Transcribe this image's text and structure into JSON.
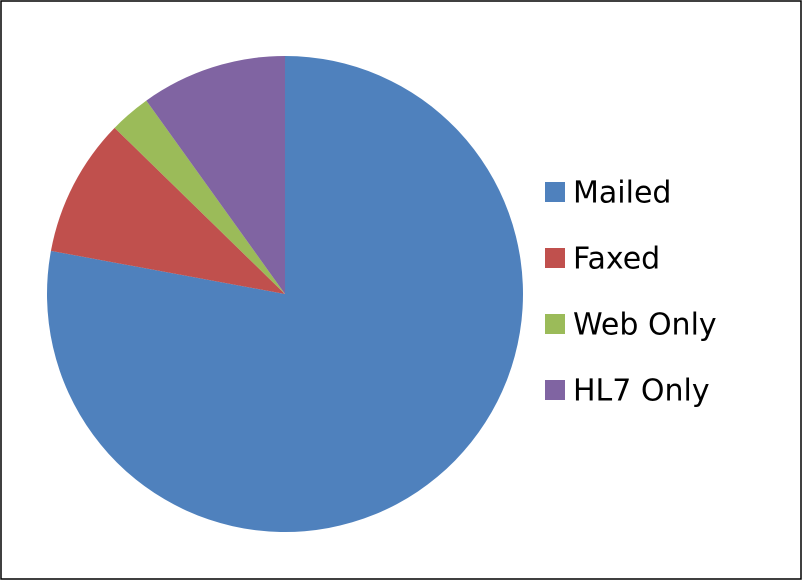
{
  "chart_data": {
    "type": "pie",
    "categories": [
      "Mailed",
      "Faxed",
      "Web Only",
      "HL7 Only"
    ],
    "values": [
      77.9,
      9.4,
      2.8,
      9.9
    ],
    "colors": [
      "#4f81bd",
      "#c0504d",
      "#9bbb59",
      "#8064a2"
    ],
    "legend": "right"
  }
}
